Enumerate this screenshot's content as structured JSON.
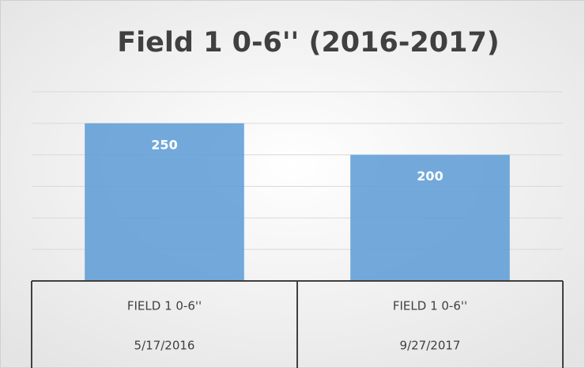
{
  "chart_data": {
    "type": "bar",
    "title": "Field 1 0-6'' (2016-2017)",
    "categories": [
      "5/17/2016",
      "9/27/2017"
    ],
    "category_groups": [
      "FIELD 1 0-6''",
      "FIELD 1 0-6''"
    ],
    "values": [
      250,
      200
    ],
    "color": "#5b9bd5",
    "ylim": [
      0,
      300
    ],
    "yticks": [
      0,
      50,
      100,
      150,
      200,
      250,
      300
    ],
    "grid": true
  }
}
